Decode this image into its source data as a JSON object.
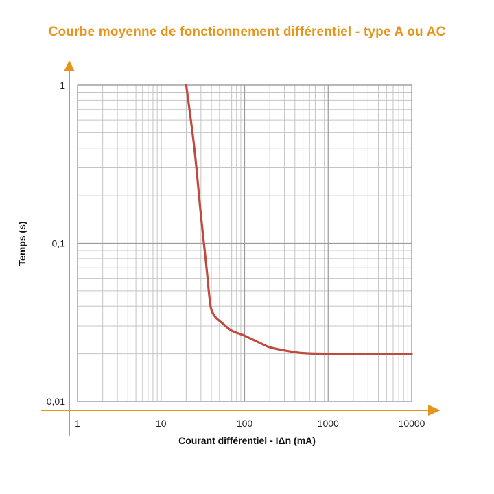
{
  "chart_data": {
    "type": "line",
    "title": "Courbe moyenne de fonctionnement différentiel - type A ou AC",
    "xlabel": "Courant différentiel - IΔn (mA)",
    "ylabel": "Temps (s)",
    "x_scale": "log",
    "y_scale": "log",
    "xlim": [
      1,
      10000
    ],
    "ylim": [
      0.01,
      1
    ],
    "x_ticks": [
      "1",
      "10",
      "100",
      "1000",
      "10000"
    ],
    "y_ticks": [
      "0,01",
      "0,1",
      "1"
    ],
    "grid": true,
    "series": [
      {
        "x": [
          20,
          25,
          30,
          35,
          38,
          40,
          45,
          55,
          70,
          100,
          150,
          200,
          300,
          500,
          1000,
          3000,
          10000
        ],
        "y": [
          1,
          0.4,
          0.15,
          0.07,
          0.045,
          0.038,
          0.034,
          0.031,
          0.028,
          0.026,
          0.0235,
          0.022,
          0.021,
          0.0202,
          0.02,
          0.02,
          0.02
        ]
      }
    ]
  },
  "colors": {
    "title": "#e8941a",
    "axis_arrow": "#e8941a",
    "curve": "#bf4b3f",
    "grid": "#c4c4c4",
    "frame": "#9a9a9a"
  }
}
